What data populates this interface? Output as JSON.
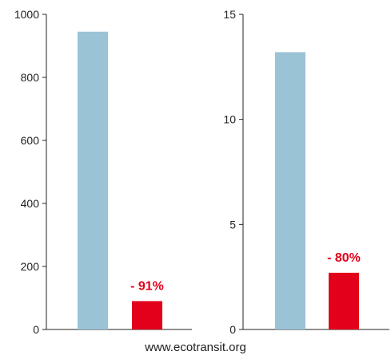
{
  "source_note": "www.ecotransit.org",
  "colors": {
    "bar_default": "#9BC3D6",
    "bar_highlight": "#E2001A",
    "annotation": "#E2001A",
    "axis": "#222222"
  },
  "chart_data": [
    {
      "type": "bar",
      "title": "",
      "xlabel": "",
      "ylabel": "",
      "ylim": [
        0,
        1000
      ],
      "yticks": [
        0,
        200,
        400,
        600,
        800,
        1000
      ],
      "categories": [
        "",
        ""
      ],
      "values": [
        945,
        90
      ],
      "annotations": [
        {
          "bar_index": 1,
          "text": "- 91%"
        }
      ],
      "grid": false
    },
    {
      "type": "bar",
      "title": "",
      "xlabel": "",
      "ylabel": "",
      "ylim": [
        0,
        15
      ],
      "yticks": [
        0,
        5,
        10,
        15
      ],
      "categories": [
        "",
        ""
      ],
      "values": [
        13.2,
        2.7
      ],
      "annotations": [
        {
          "bar_index": 1,
          "text": "- 80%"
        }
      ],
      "grid": false
    }
  ]
}
